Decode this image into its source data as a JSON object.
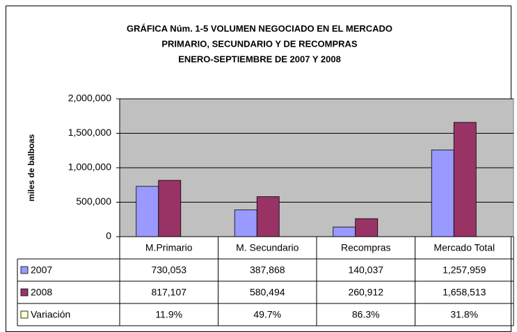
{
  "chart_data": {
    "type": "bar",
    "title": [
      "GRÁFICA Núm. 1-5 VOLUMEN NEGOCIADO EN  EL MERCADO",
      "PRIMARIO, SECUNDARIO Y DE RECOMPRAS",
      "ENERO-SEPTIEMBRE DE 2007 Y 2008"
    ],
    "y_label": "miles de balboas",
    "categories": [
      "M.Primario",
      "M. Secundario",
      "Recompras",
      "Mercado Total"
    ],
    "series": [
      {
        "name": "2007",
        "color": "#9999ff",
        "values": [
          730053,
          387868,
          140037,
          1257959
        ],
        "value_labels": [
          "730,053",
          "387,868",
          "140,037",
          "1,257,959"
        ]
      },
      {
        "name": "2008",
        "color": "#993366",
        "values": [
          817107,
          580494,
          260912,
          1658513
        ],
        "value_labels": [
          "817,107",
          "580,494",
          "260,912",
          "1,658,513"
        ]
      },
      {
        "name": "Variación",
        "color": "#ffffcc",
        "plotted": false,
        "values": [
          11.9,
          49.7,
          86.3,
          31.8
        ],
        "value_labels": [
          "11.9%",
          "49.7%",
          "86.3%",
          "31.8%"
        ]
      }
    ],
    "ylim": [
      0,
      2000000
    ],
    "yticks": [
      0,
      {
        "value": 500000,
        "label": "500,000"
      },
      {
        "value": 1000000,
        "label": "1,000,000"
      },
      {
        "value": 1500000,
        "label": "1,500,000"
      },
      {
        "value": 2000000,
        "label": "2,000,000"
      }
    ],
    "grid": true,
    "plot_background": "#c0c0c0"
  }
}
